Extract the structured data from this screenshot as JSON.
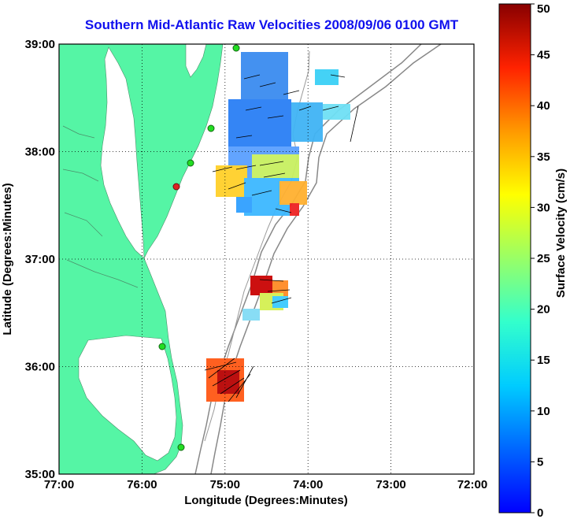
{
  "title": "Southern Mid-Atlantic Raw Velocities 2008/09/06 0100 GMT",
  "map": {
    "x_label": "Longitude (Degrees:Minutes)",
    "y_label": "Latitude (Degrees:Minutes)",
    "x_ticks": [
      "77:00",
      "76:00",
      "75:00",
      "74:00",
      "73:00",
      "72:00"
    ],
    "y_ticks": [
      "39:00",
      "38:00",
      "37:00",
      "36:00",
      "35:00"
    ],
    "lon_range": [
      -77,
      -72
    ],
    "lat_range": [
      35,
      39
    ],
    "grid": "dotted",
    "land_color": "#55f5a5",
    "station_color": "#22dd22",
    "station_highlight_color": "#dd2222"
  },
  "colorbar": {
    "label": "Surface Velocity (cm/s)",
    "range": [
      0,
      50
    ],
    "ticks": [
      "0",
      "5",
      "10",
      "15",
      "20",
      "25",
      "30",
      "35",
      "40",
      "45",
      "50"
    ],
    "colormap": "jet"
  }
}
